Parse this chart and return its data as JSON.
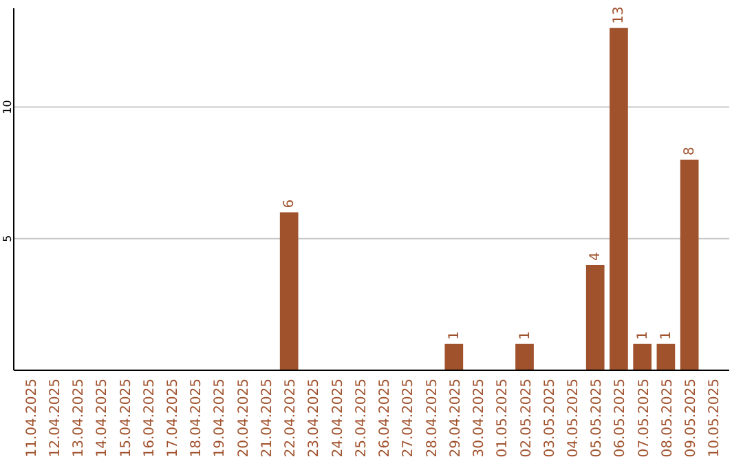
{
  "chart_data": {
    "type": "bar",
    "categories": [
      "11.04.2025",
      "12.04.2025",
      "13.04.2025",
      "14.04.2025",
      "15.04.2025",
      "16.04.2025",
      "17.04.2025",
      "18.04.2025",
      "19.04.2025",
      "20.04.2025",
      "21.04.2025",
      "22.04.2025",
      "23.04.2025",
      "24.04.2025",
      "25.04.2025",
      "26.04.2025",
      "27.04.2025",
      "28.04.2025",
      "29.04.2025",
      "30.04.2025",
      "01.05.2025",
      "02.05.2025",
      "03.05.2025",
      "04.05.2025",
      "05.05.2025",
      "06.05.2025",
      "07.05.2025",
      "08.05.2025",
      "09.05.2025",
      "10.05.2025"
    ],
    "values": [
      0,
      0,
      0,
      0,
      0,
      0,
      0,
      0,
      0,
      0,
      0,
      6,
      0,
      0,
      0,
      0,
      0,
      0,
      1,
      0,
      0,
      1,
      0,
      0,
      4,
      13,
      1,
      1,
      8,
      0
    ],
    "value_labels": [
      null,
      null,
      null,
      null,
      null,
      null,
      null,
      null,
      null,
      null,
      null,
      "6",
      null,
      null,
      null,
      null,
      null,
      null,
      "1",
      null,
      null,
      "1",
      null,
      null,
      "4",
      "13",
      "1",
      "1",
      "8",
      null
    ],
    "color": "#a0522d",
    "ylim": [
      0,
      13.75
    ],
    "yticks": [
      5,
      10
    ],
    "grid": "y"
  }
}
